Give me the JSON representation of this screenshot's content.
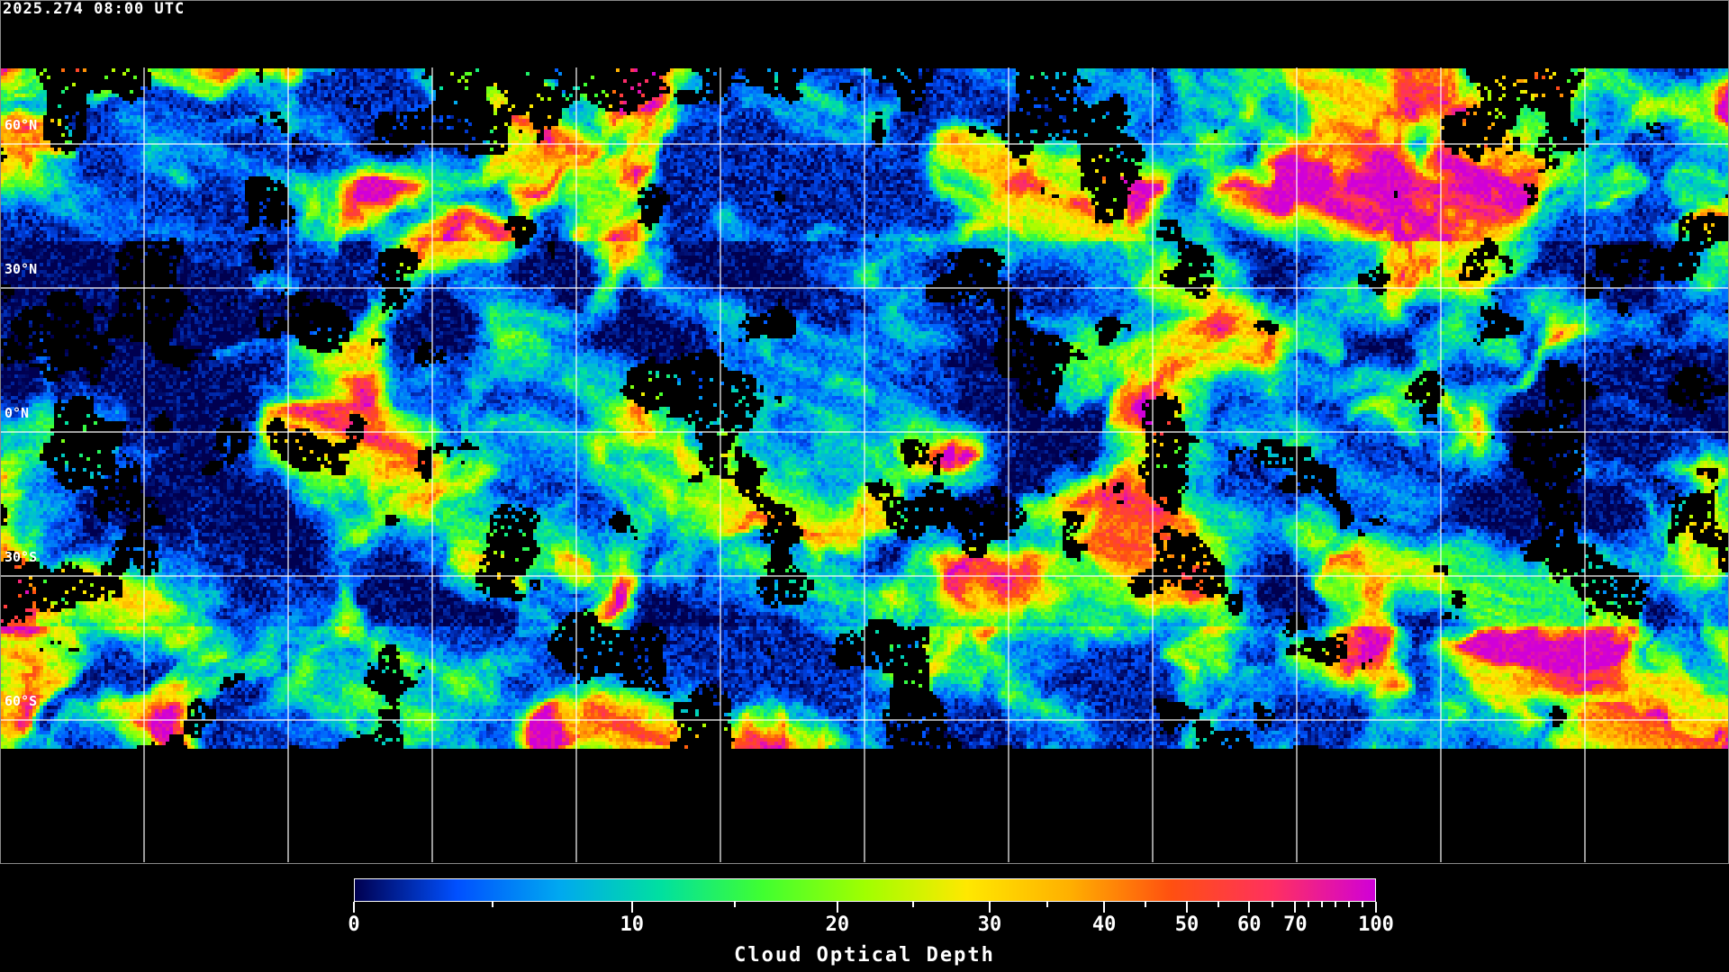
{
  "title": "2025.274 08:00 UTC",
  "latitude_labels": [
    "60°N",
    "30°N",
    "0°N",
    "30°S",
    "60°S"
  ],
  "colorbar": {
    "label": "Cloud Optical Depth",
    "min": 0,
    "max": 100,
    "tick_labels": [
      "0",
      "10",
      "20",
      "30",
      "40",
      "50",
      "60",
      "70",
      "100"
    ],
    "colors": [
      "#000050",
      "#0050ff",
      "#00a8f0",
      "#00e0a0",
      "#40ff30",
      "#a0ff00",
      "#ffe800",
      "#ffb000",
      "#ff5010",
      "#ff3060",
      "#d000d8"
    ]
  },
  "map": {
    "projection": "equirectangular",
    "grid_spacing_degrees": 30,
    "coastline_color": "#ffffff",
    "no_data_color": "#000000"
  }
}
